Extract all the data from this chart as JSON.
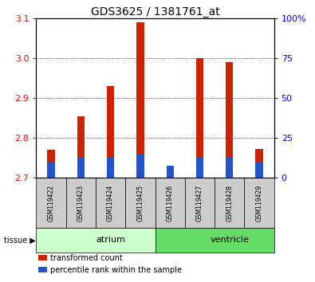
{
  "title": "GDS3625 / 1381761_at",
  "samples": [
    "GSM119422",
    "GSM119423",
    "GSM119424",
    "GSM119425",
    "GSM119426",
    "GSM119427",
    "GSM119428",
    "GSM119429"
  ],
  "red_values": [
    2.77,
    2.855,
    2.93,
    3.09,
    2.73,
    3.0,
    2.99,
    2.772
  ],
  "blue_values": [
    2.74,
    2.75,
    2.752,
    2.76,
    2.73,
    2.752,
    2.752,
    2.74
  ],
  "baseline": 2.7,
  "ylim_left": [
    2.7,
    3.1
  ],
  "yticks_left": [
    2.7,
    2.8,
    2.9,
    3.0,
    3.1
  ],
  "ylim_right": [
    0,
    100
  ],
  "yticks_right": [
    0,
    25,
    50,
    75,
    100
  ],
  "ytick_labels_right": [
    "0",
    "25",
    "50",
    "75",
    "100%"
  ],
  "tissue_groups": [
    {
      "label": "atrium",
      "start": 0,
      "end": 4,
      "color": "#ccffcc"
    },
    {
      "label": "ventricle",
      "start": 4,
      "end": 8,
      "color": "#66dd66"
    }
  ],
  "red_color": "#cc2200",
  "blue_color": "#2255cc",
  "bar_bg_color": "#cccccc",
  "legend": [
    {
      "color": "#cc2200",
      "label": "transformed count"
    },
    {
      "color": "#2255cc",
      "label": "percentile rank within the sample"
    }
  ]
}
